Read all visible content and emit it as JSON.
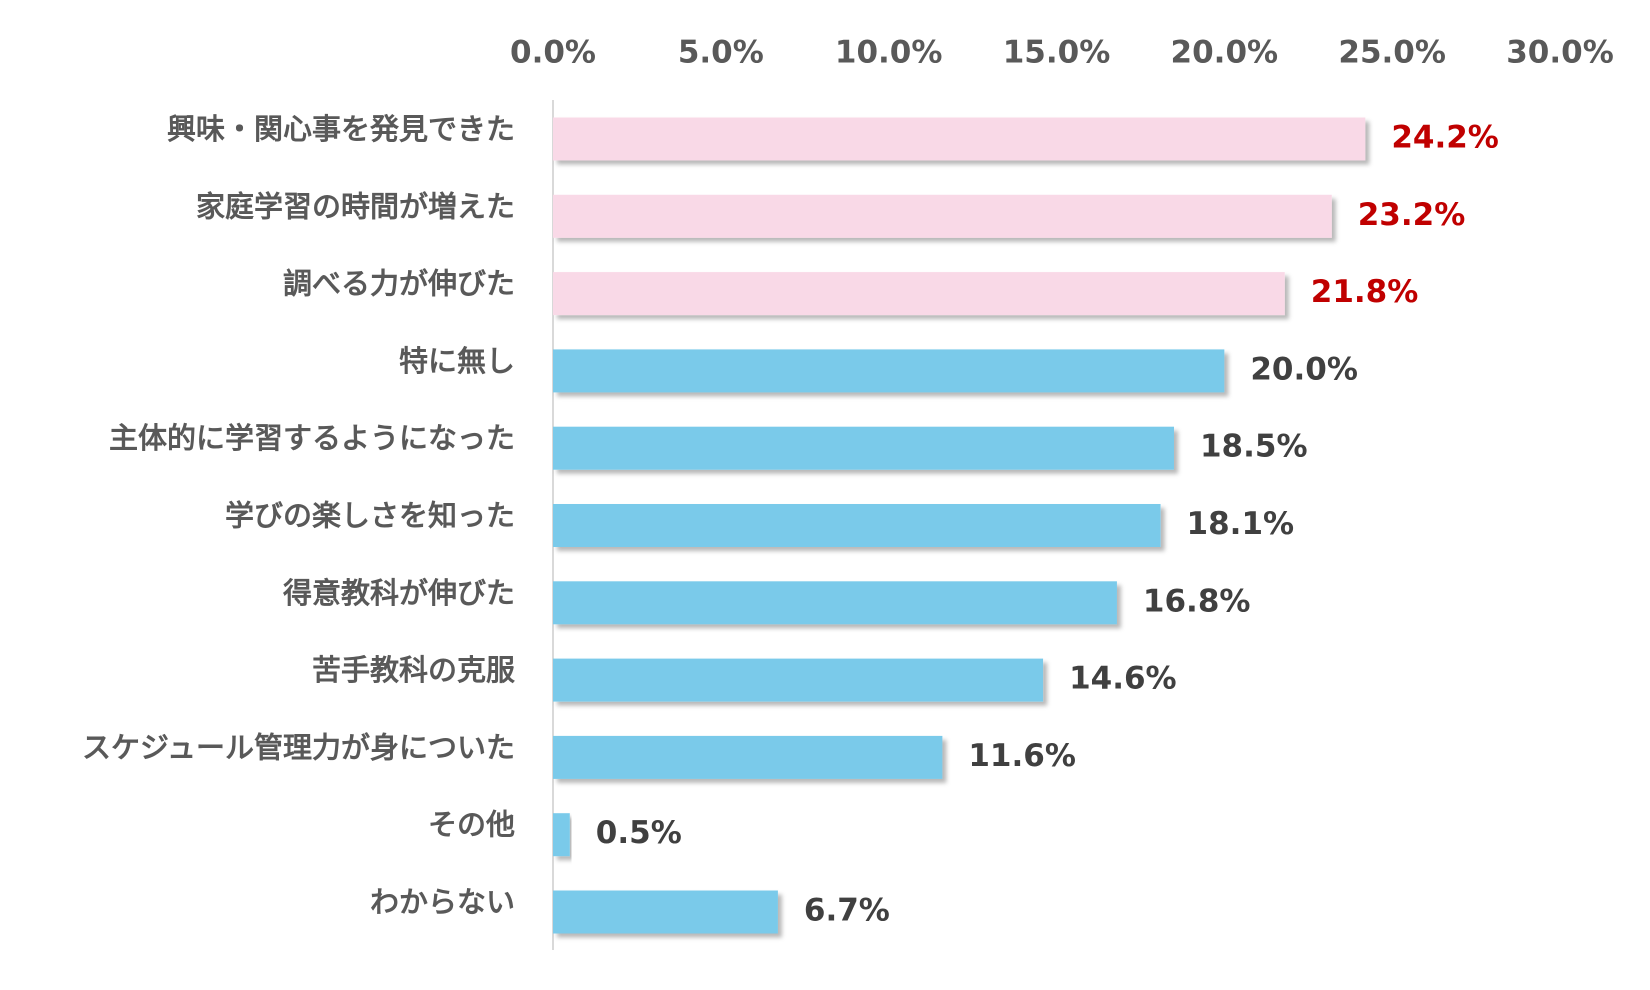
{
  "chart_data": {
    "type": "bar",
    "orientation": "horizontal",
    "title": "",
    "xlabel": "",
    "ylabel": "",
    "xlim": [
      0,
      30
    ],
    "x_ticks": [
      0,
      5,
      10,
      15,
      20,
      25,
      30
    ],
    "x_tick_labels": [
      "0.0%",
      "5.0%",
      "10.0%",
      "15.0%",
      "20.0%",
      "25.0%",
      "30.0%"
    ],
    "x_axis_position": "top",
    "grid": false,
    "legend": "none",
    "highlight_count": 3,
    "colors": {
      "highlight_bar": "#F9D9E7",
      "normal_bar": "#7ACAEA",
      "highlight_label": "#C00000",
      "normal_label": "#404040",
      "axis_text": "#595959",
      "axis_line": "#D9D9D9"
    },
    "categories": [
      "興味・関心事を発見できた",
      "家庭学習の時間が増えた",
      "調べる力が伸びた",
      "特に無し",
      "主体的に学習するようになった",
      "学びの楽しさを知った",
      "得意教科が伸びた",
      "苦手教科の克服",
      "スケジュール管理力が身についた",
      "その他",
      "わからない"
    ],
    "values": [
      24.2,
      23.2,
      21.8,
      20.0,
      18.5,
      18.1,
      16.8,
      14.6,
      11.6,
      0.5,
      6.7
    ],
    "value_labels": [
      "24.2%",
      "23.2%",
      "21.8%",
      "20.0%",
      "18.5%",
      "18.1%",
      "16.8%",
      "14.6%",
      "11.6%",
      "0.5%",
      "6.7%"
    ]
  }
}
